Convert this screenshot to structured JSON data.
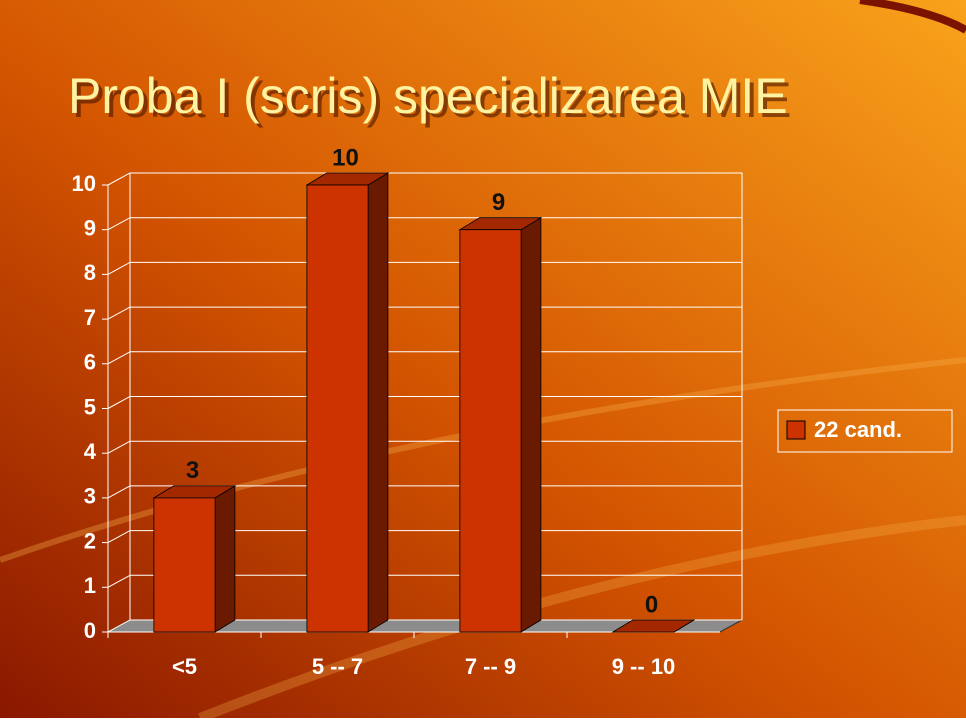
{
  "chart_data": {
    "type": "bar3d",
    "title": "Proba I (scris) specializarea MIE",
    "categories": [
      "<5",
      "5 -- 7",
      "7 -- 9",
      "9 -- 10"
    ],
    "series": [
      {
        "name": "22 cand.",
        "color": "#cc3300",
        "values": [
          3,
          10,
          9,
          0
        ]
      }
    ],
    "ylim": [
      0,
      10
    ],
    "yticks": [
      0,
      1,
      2,
      3,
      4,
      5,
      6,
      7,
      8,
      9,
      10
    ],
    "grid": true,
    "legend": "right"
  }
}
